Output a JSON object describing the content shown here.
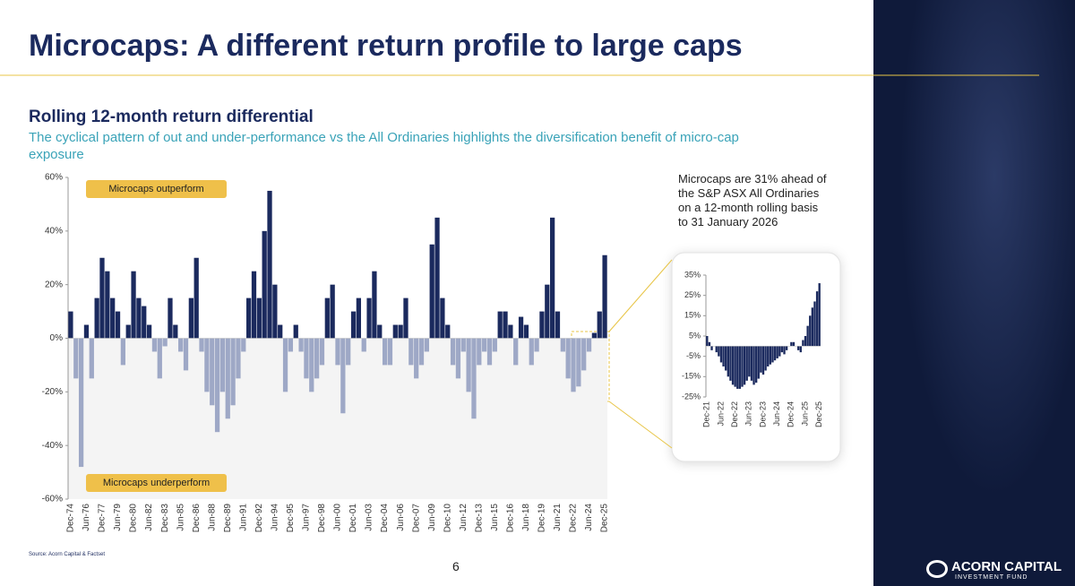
{
  "slide": {
    "title": "Microcaps: A different return profile to large caps",
    "heading": "Rolling 12-month return differential",
    "description": "The cyclical pattern of out and under-performance vs the All Ordinaries highlights the diversification benefit of micro-cap exposure",
    "source": "Source: Acorn Capital & Factset",
    "page": "6",
    "logo": "ACORN CAPITAL",
    "logo_sub": "INVESTMENT FUND"
  },
  "chart_data": [
    {
      "type": "bar",
      "annotations": [
        "Microcaps outperform",
        "Microcaps underperform"
      ],
      "categories": [
        "Dec-74",
        null,
        null,
        "Jun-76",
        null,
        null,
        "Dec-77",
        null,
        null,
        "Jun-79",
        null,
        null,
        "Dec-80",
        null,
        null,
        "Jun-82",
        null,
        null,
        "Dec-83",
        null,
        null,
        "Jun-85",
        null,
        null,
        "Dec-86",
        null,
        null,
        "Jun-88",
        null,
        null,
        "Dec-89",
        null,
        null,
        "Jun-91",
        null,
        null,
        "Dec-92",
        null,
        null,
        "Jun-94",
        null,
        null,
        "Dec-95",
        null,
        null,
        "Jun-97",
        null,
        null,
        "Dec-98",
        null,
        null,
        "Jun-00",
        null,
        null,
        "Dec-01",
        null,
        null,
        "Jun-03",
        null,
        null,
        "Dec-04",
        null,
        null,
        "Jun-06",
        null,
        null,
        "Dec-07",
        null,
        null,
        "Jun-09",
        null,
        null,
        "Dec-10",
        null,
        null,
        "Jun-12",
        null,
        null,
        "Dec-13",
        null,
        null,
        "Jun-15",
        null,
        null,
        "Dec-16",
        null,
        null,
        "Jun-18",
        null,
        null,
        "Dec-19",
        null,
        null,
        "Jun-21",
        null,
        null,
        "Dec-22",
        null,
        null,
        "Jun-24",
        null,
        null,
        "Dec-25"
      ],
      "values": [
        10,
        -15,
        -48,
        5,
        -15,
        15,
        30,
        25,
        15,
        10,
        -10,
        5,
        25,
        15,
        12,
        5,
        -5,
        -15,
        -3,
        15,
        5,
        -5,
        -12,
        15,
        30,
        -5,
        -20,
        -25,
        -35,
        -20,
        -30,
        -25,
        -15,
        -5,
        15,
        25,
        15,
        40,
        55,
        20,
        5,
        -20,
        -5,
        5,
        -5,
        -15,
        -20,
        -15,
        -10,
        15,
        20,
        -10,
        -28,
        -10,
        10,
        15,
        -5,
        15,
        25,
        5,
        -10,
        -10,
        5,
        5,
        15,
        -10,
        -15,
        -10,
        -5,
        35,
        45,
        15,
        5,
        -10,
        -15,
        -5,
        -20,
        -30,
        -10,
        -5,
        -10,
        -5,
        10,
        10,
        5,
        -10,
        8,
        5,
        -10,
        -5,
        10,
        20,
        45,
        10,
        -5,
        -15,
        -20,
        -18,
        -12,
        -5,
        2,
        10,
        31
      ],
      "positive_color": "#1b2a5e",
      "negative_color": "#9ea8c6",
      "ylim": [
        -60,
        60
      ],
      "yticks": [
        {
          "value": -60,
          "label": "-60%"
        },
        {
          "value": -40,
          "label": "-40%"
        },
        {
          "value": -20,
          "label": "-20%"
        },
        {
          "value": 0,
          "label": "0%"
        },
        {
          "value": 20,
          "label": "20%"
        },
        {
          "value": 40,
          "label": "40%"
        },
        {
          "value": 60,
          "label": "60%"
        }
      ]
    },
    {
      "type": "bar",
      "title": "Microcaps are 31% ahead of the S&P ASX All Ordinaries on a 12-month rolling basis to 31 January 2026",
      "categories": [
        "Dec-21",
        null,
        null,
        null,
        null,
        null,
        "Jun-22",
        null,
        null,
        null,
        null,
        null,
        "Dec-22",
        null,
        null,
        null,
        null,
        null,
        "Jun-23",
        null,
        null,
        null,
        null,
        null,
        "Dec-23",
        null,
        null,
        null,
        null,
        null,
        "Jun-24",
        null,
        null,
        null,
        null,
        null,
        "Dec-24",
        null,
        null,
        null,
        null,
        null,
        "Jun-25",
        null,
        null,
        null,
        null,
        null,
        "Dec-25"
      ],
      "values": [
        5,
        2,
        -2,
        0,
        -3,
        -5,
        -8,
        -10,
        -12,
        -15,
        -17,
        -19,
        -20,
        -21,
        -21,
        -20,
        -19,
        -17,
        -15,
        -17,
        -19,
        -18,
        -16,
        -13,
        -14,
        -12,
        -10,
        -9,
        -8,
        -7,
        -6,
        -5,
        -3,
        -4,
        -2,
        0,
        2,
        2,
        0,
        -2,
        -3,
        3,
        5,
        10,
        15,
        19,
        22,
        27,
        31
      ],
      "color": "#1b2a5e",
      "ylim": [
        -25,
        35
      ],
      "yticks": [
        {
          "value": -25,
          "label": "-25%"
        },
        {
          "value": -15,
          "label": "-15%"
        },
        {
          "value": -5,
          "label": "-5%"
        },
        {
          "value": 5,
          "label": "5%"
        },
        {
          "value": 15,
          "label": "15%"
        },
        {
          "value": 25,
          "label": "25%"
        },
        {
          "value": 35,
          "label": "35%"
        }
      ]
    }
  ]
}
